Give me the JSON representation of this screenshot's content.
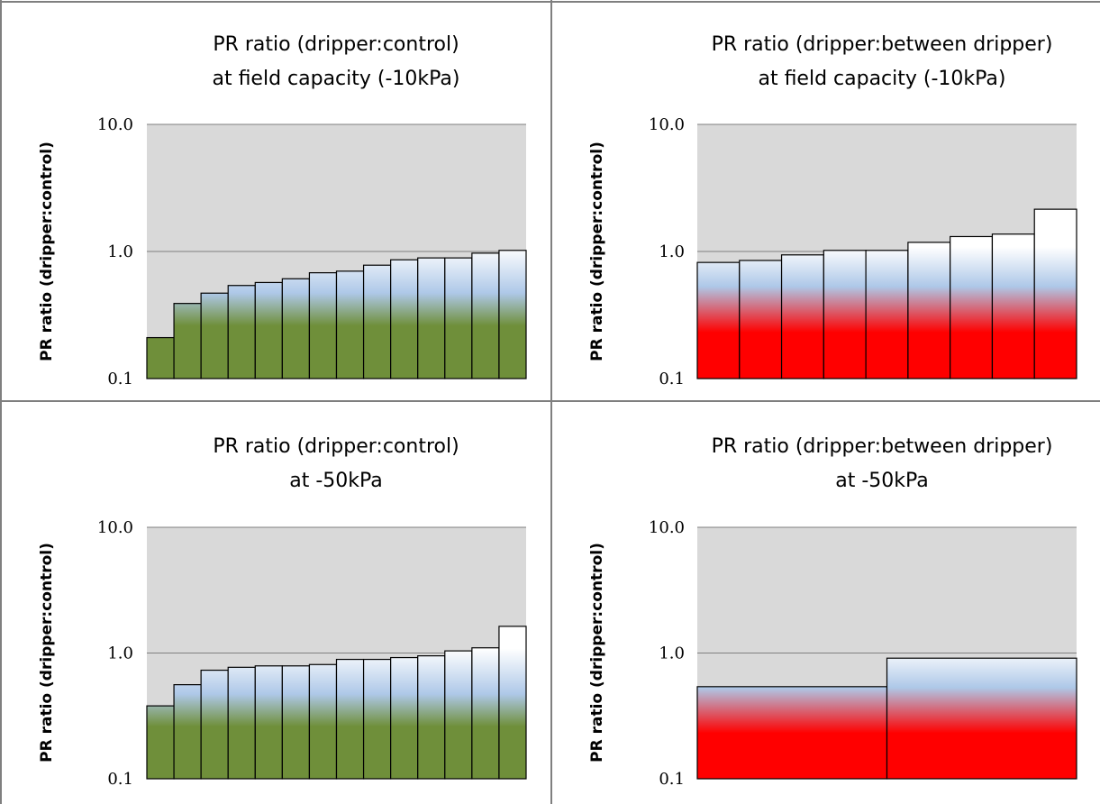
{
  "colors": {
    "plot_bg": "#d9d9d9",
    "gridline": "#808080",
    "bar_top": "#ffffff",
    "bar_mid": "#aec8e8",
    "green": "#6f8f3a",
    "red": "#ff0000",
    "divider": "#7f7f7f"
  },
  "chart_data": [
    {
      "type": "bar",
      "title": [
        "PR ratio (dripper:control)",
        "at field capacity (-10kPa)"
      ],
      "ylabel": "PR ratio (dripper:control)",
      "yscale": "log",
      "ylim": [
        0.1,
        10
      ],
      "yticks": [
        "10.0",
        "1.0",
        "0.1"
      ],
      "fill": "green",
      "grid": true,
      "values": [
        0.21,
        0.39,
        0.47,
        0.54,
        0.57,
        0.61,
        0.68,
        0.7,
        0.78,
        0.86,
        0.89,
        0.89,
        0.97,
        1.02
      ]
    },
    {
      "type": "bar",
      "title": [
        "PR ratio (dripper:between dripper)",
        "at field capacity (-10kPa)"
      ],
      "ylabel": "PR ratio (dripper:control)",
      "yscale": "log",
      "ylim": [
        0.1,
        10
      ],
      "yticks": [
        "10.0",
        "1.0",
        "0.1"
      ],
      "fill": "red",
      "grid": true,
      "values": [
        0.82,
        0.85,
        0.94,
        1.02,
        1.02,
        1.18,
        1.31,
        1.37,
        2.15
      ]
    },
    {
      "type": "bar",
      "title": [
        "PR ratio (dripper:control)",
        "at  -50kPa"
      ],
      "ylabel": "PR ratio (dripper:control)",
      "yscale": "log",
      "ylim": [
        0.1,
        10
      ],
      "yticks": [
        "10.0",
        "1.0",
        "0.1"
      ],
      "fill": "green",
      "grid": true,
      "values": [
        0.38,
        0.56,
        0.73,
        0.77,
        0.79,
        0.79,
        0.81,
        0.89,
        0.89,
        0.92,
        0.95,
        1.04,
        1.1,
        1.63
      ]
    },
    {
      "type": "bar",
      "title": [
        "PR ratio (dripper:between dripper)",
        "at  -50kPa"
      ],
      "ylabel": "PR ratio (dripper:control)",
      "yscale": "log",
      "ylim": [
        0.1,
        10
      ],
      "yticks": [
        "10.0",
        "1.0",
        "0.1"
      ],
      "fill": "red",
      "grid": true,
      "values": [
        0.54,
        0.91
      ]
    }
  ]
}
